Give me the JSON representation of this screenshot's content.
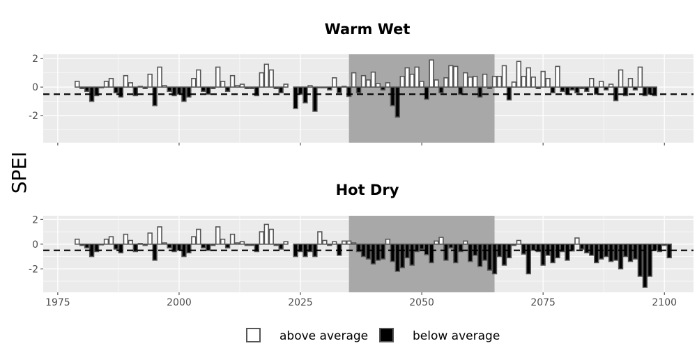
{
  "chart_data": {
    "type": "bar",
    "ylabel": "SPEI",
    "x_ticks": [
      1975,
      2000,
      2025,
      2050,
      2075,
      2100
    ],
    "xlim": [
      1972,
      2106
    ],
    "reference_line": -0.5,
    "shaded_period": [
      2035,
      2065
    ],
    "colors": {
      "panel_bg": "#ebebeb",
      "grid": "#ffffff",
      "shade": "#a8a8a8",
      "above": "#ffffff",
      "below": "#000000",
      "bar_stroke": "#555555",
      "tick_text": "#4d4d4d"
    },
    "legend": [
      {
        "label": "above average",
        "fill": "#ffffff"
      },
      {
        "label": "below average",
        "fill": "#000000"
      }
    ],
    "panels": [
      {
        "title": "Warm Wet",
        "ylim": [
          -3.9,
          2.3
        ],
        "y_ticks": [
          2,
          0,
          -2
        ],
        "start_year": 1979,
        "values": [
          0.4,
          -0.1,
          -0.3,
          -1.0,
          -0.6,
          0.0,
          0.4,
          0.6,
          -0.4,
          -0.7,
          0.8,
          0.3,
          -0.6,
          0.05,
          -0.1,
          0.9,
          -1.3,
          1.4,
          0.1,
          -0.3,
          -0.6,
          -0.5,
          -1.0,
          -0.7,
          0.6,
          1.2,
          -0.3,
          -0.5,
          -0.1,
          1.4,
          0.4,
          -0.3,
          0.8,
          0.1,
          0.2,
          -0.1,
          -0.1,
          -0.6,
          1.0,
          1.6,
          1.2,
          -0.1,
          -0.4,
          0.2,
          null,
          -1.5,
          -0.5,
          -1.1,
          0.1,
          -1.7,
          0.0,
          0.0,
          -0.2,
          0.65,
          -0.4,
          0.05,
          -0.65,
          1.0,
          -0.4,
          0.8,
          0.5,
          1.05,
          0.25,
          -0.2,
          0.3,
          -1.3,
          -2.1,
          0.75,
          1.35,
          0.9,
          1.4,
          0.4,
          -0.85,
          1.9,
          0.5,
          -0.4,
          0.65,
          1.5,
          1.45,
          -0.5,
          1.0,
          0.7,
          0.75,
          -0.7,
          0.9,
          -0.1,
          0.75,
          0.75,
          1.5,
          -0.9,
          0.35,
          1.8,
          0.75,
          1.35,
          0.7,
          -0.1,
          1.1,
          0.6,
          -0.4,
          1.45,
          -0.3,
          -0.5,
          -0.2,
          -0.4,
          -0.1,
          -0.3,
          0.6,
          -0.5,
          0.4,
          -0.2,
          0.2,
          -0.95,
          1.2,
          -0.6,
          0.6,
          -0.2,
          1.4,
          -0.6,
          -0.5,
          -0.6
        ]
      },
      {
        "title": "Hot Dry",
        "ylim": [
          -3.9,
          2.3
        ],
        "y_ticks": [
          2,
          0,
          -2
        ],
        "start_year": 1979,
        "values": [
          0.4,
          -0.1,
          -0.3,
          -1.0,
          -0.6,
          0.0,
          0.4,
          0.6,
          -0.4,
          -0.7,
          0.8,
          0.3,
          -0.6,
          0.05,
          -0.1,
          0.9,
          -1.3,
          1.4,
          0.1,
          -0.3,
          -0.6,
          -0.5,
          -1.0,
          -0.7,
          0.6,
          1.2,
          -0.3,
          -0.5,
          -0.1,
          1.4,
          0.4,
          -0.3,
          0.8,
          0.1,
          0.2,
          -0.1,
          -0.1,
          -0.6,
          1.0,
          1.6,
          1.2,
          -0.1,
          -0.4,
          0.2,
          null,
          -1.0,
          -0.6,
          -1.0,
          -0.6,
          -1.0,
          1.0,
          0.3,
          -0.1,
          0.2,
          -0.9,
          0.25,
          0.25,
          0.1,
          -0.6,
          -1.0,
          -1.2,
          -1.6,
          -1.3,
          -1.2,
          0.4,
          -1.4,
          -2.2,
          -1.9,
          -1.1,
          -1.7,
          -0.6,
          -0.4,
          -0.85,
          -1.5,
          0.25,
          0.55,
          -1.3,
          -0.3,
          -1.5,
          -0.6,
          0.25,
          -1.4,
          -0.9,
          -1.8,
          -1.3,
          -2.1,
          -2.4,
          -1.0,
          -1.7,
          -1.1,
          -0.1,
          0.3,
          -0.8,
          -2.4,
          -0.5,
          -0.6,
          -1.7,
          -0.9,
          -1.5,
          -1.1,
          -0.6,
          -1.3,
          -0.55,
          0.5,
          -0.4,
          -0.7,
          -0.9,
          -1.5,
          -1.2,
          -1.0,
          -1.4,
          -1.3,
          -2.0,
          -1.0,
          -1.4,
          -1.2,
          -2.6,
          -3.5,
          -2.6,
          -0.5,
          -0.6,
          -0.1,
          -1.1
        ]
      }
    ]
  }
}
